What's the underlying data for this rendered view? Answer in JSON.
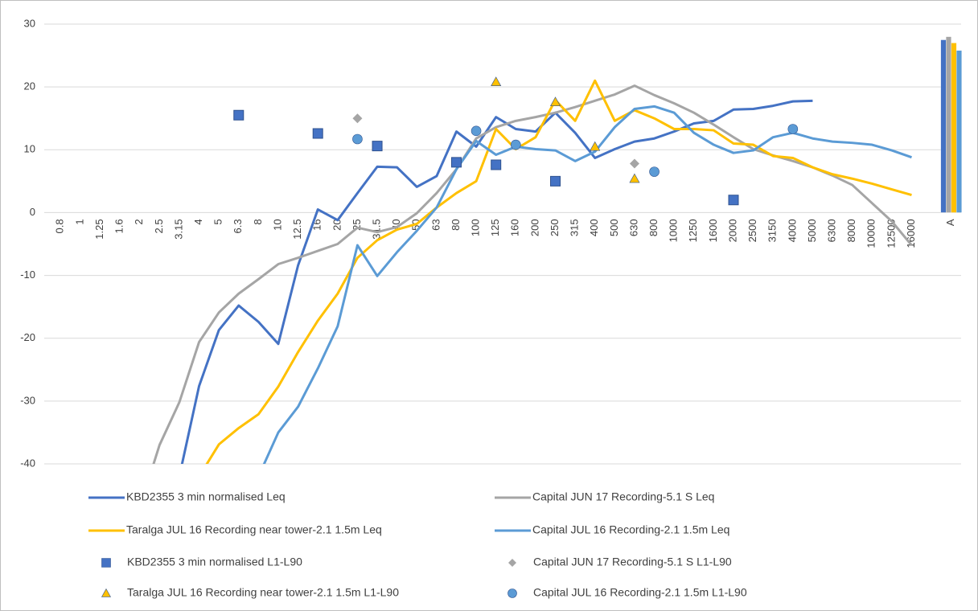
{
  "chart_data": {
    "type": "line",
    "categories": [
      "0.8",
      "1",
      "1.25",
      "1.6",
      "2",
      "2.5",
      "3.15",
      "4",
      "5",
      "6.3",
      "8",
      "10",
      "12.5",
      "16",
      "20",
      "25",
      "31.5",
      "40",
      "50",
      "63",
      "80",
      "100",
      "125",
      "160",
      "200",
      "250",
      "315",
      "400",
      "500",
      "630",
      "800",
      "1000",
      "1250",
      "1600",
      "2000",
      "2500",
      "3150",
      "4000",
      "5000",
      "6300",
      "8000",
      "10000",
      "12500",
      "16000",
      null,
      "A"
    ],
    "ylim": [
      -40,
      30
    ],
    "yticks": [
      -40,
      -30,
      -20,
      -10,
      0,
      10,
      20,
      30
    ],
    "grid": true,
    "series": [
      {
        "name": "KBD2355 3 min normalised Leq",
        "type": "line",
        "color": "#4472c4",
        "values": [
          null,
          null,
          null,
          null,
          null,
          null,
          -42,
          -27.6,
          -18.7,
          -14.8,
          -17.4,
          -20.9,
          -8.4,
          0.5,
          -1.2,
          3.1,
          7.3,
          7.2,
          4.1,
          5.8,
          12.9,
          10.5,
          15.2,
          13.3,
          12.9,
          15.9,
          12.7,
          8.7,
          10.1,
          11.3,
          11.8,
          12.9,
          14.2,
          14.6,
          16.4,
          16.5,
          17.0,
          17.7,
          17.8,
          null,
          null,
          null,
          null,
          null,
          null,
          null
        ]
      },
      {
        "name": "Capital JUN 17 Recording-5.1 S Leq",
        "type": "line",
        "color": "#a5a5a5",
        "values": [
          null,
          null,
          null,
          null,
          -47,
          -37,
          -30.2,
          -20.6,
          -15.9,
          -12.9,
          -10.6,
          -8.2,
          -7.2,
          -6.1,
          -5.0,
          -2.4,
          -3.1,
          -2.3,
          -0.1,
          3.1,
          6.9,
          11.8,
          13.6,
          14.6,
          15.2,
          15.9,
          16.8,
          17.8,
          18.8,
          20.2,
          18.7,
          17.4,
          15.9,
          14.0,
          12.0,
          10.1,
          9.1,
          8.2,
          7.2,
          5.9,
          4.4,
          1.5,
          -1.4,
          -5.2,
          null,
          null
        ]
      },
      {
        "name": "Taralga JUL 16 Recording near tower-2.1 1.5m Leq",
        "type": "line",
        "color": "#ffc000",
        "values": [
          null,
          null,
          null,
          null,
          null,
          null,
          null,
          -42,
          -36.9,
          -34.3,
          -32.1,
          -27.7,
          -22.2,
          -17.2,
          -12.9,
          -7.2,
          -4.4,
          -2.7,
          -1.8,
          0.8,
          3.1,
          5.0,
          13.3,
          10.1,
          12.0,
          17.9,
          14.6,
          21.0,
          14.6,
          16.3,
          15.0,
          13.3,
          13.3,
          13.1,
          11.0,
          10.8,
          9.0,
          8.7,
          7.2,
          6.1,
          5.4,
          4.6,
          3.7,
          2.8,
          null,
          null
        ]
      },
      {
        "name": "Capital JUL 16 Recording-2.1 1.5m Leq",
        "type": "line",
        "color": "#5b9bd5",
        "values": [
          null,
          null,
          null,
          null,
          null,
          null,
          null,
          null,
          null,
          null,
          -42,
          -35,
          -30.9,
          -24.8,
          -18.1,
          -5.2,
          -10.1,
          -6.3,
          -2.9,
          0.8,
          6.9,
          11.4,
          9.2,
          10.5,
          10.1,
          9.9,
          8.2,
          9.7,
          13.6,
          16.5,
          16.9,
          15.9,
          12.7,
          10.8,
          9.5,
          9.9,
          12.0,
          12.7,
          11.8,
          11.3,
          11.1,
          10.8,
          9.9,
          8.8,
          null,
          null
        ]
      },
      {
        "name": "KBD2355 3 min normalised L1-L90",
        "type": "scatter",
        "marker": "square",
        "color": "#4472c4",
        "values": [
          null,
          null,
          null,
          null,
          null,
          null,
          null,
          null,
          null,
          15.5,
          null,
          null,
          null,
          12.6,
          null,
          null,
          10.6,
          null,
          null,
          null,
          8.0,
          null,
          7.6,
          null,
          null,
          5.0,
          null,
          null,
          null,
          null,
          null,
          null,
          null,
          null,
          2.0,
          null,
          null,
          null,
          null,
          null,
          null,
          null,
          null,
          null,
          null,
          null
        ]
      },
      {
        "name": "Capital JUN 17 Recording-5.1 S L1-L90",
        "type": "scatter",
        "marker": "diamond",
        "color": "#a5a5a5",
        "values": [
          null,
          null,
          null,
          null,
          null,
          null,
          null,
          null,
          null,
          null,
          null,
          null,
          null,
          null,
          null,
          15.0,
          null,
          null,
          null,
          null,
          null,
          null,
          null,
          null,
          null,
          null,
          null,
          null,
          null,
          7.8,
          null,
          null,
          null,
          null,
          null,
          null,
          null,
          null,
          null,
          null,
          null,
          null,
          null,
          null,
          null,
          null
        ]
      },
      {
        "name": "Taralga JUL 16 Recording near tower-2.1 1.5m L1-L90",
        "type": "scatter",
        "marker": "triangle",
        "color": "#ffc000",
        "values": [
          null,
          null,
          null,
          null,
          null,
          null,
          null,
          null,
          null,
          null,
          null,
          null,
          null,
          null,
          null,
          null,
          null,
          null,
          null,
          null,
          null,
          null,
          20.8,
          null,
          null,
          17.6,
          null,
          10.5,
          null,
          5.4,
          null,
          null,
          null,
          null,
          null,
          null,
          null,
          null,
          null,
          null,
          null,
          null,
          null,
          null,
          null,
          null
        ]
      },
      {
        "name": "Capital JUL 16 Recording-2.1 1.5m L1-L90",
        "type": "scatter",
        "marker": "circle",
        "color": "#5b9bd5",
        "values": [
          null,
          null,
          null,
          null,
          null,
          null,
          null,
          null,
          null,
          null,
          null,
          null,
          null,
          null,
          null,
          11.7,
          null,
          null,
          null,
          null,
          null,
          13.0,
          null,
          10.8,
          null,
          null,
          null,
          null,
          null,
          null,
          6.5,
          null,
          null,
          null,
          null,
          null,
          null,
          13.3,
          null,
          null,
          null,
          null,
          null,
          null,
          null,
          null
        ]
      },
      {
        "type": "bar",
        "color": "#4472c4",
        "values": [
          null,
          null,
          null,
          null,
          null,
          null,
          null,
          null,
          null,
          null,
          null,
          null,
          null,
          null,
          null,
          null,
          null,
          null,
          null,
          null,
          null,
          null,
          null,
          null,
          null,
          null,
          null,
          null,
          null,
          null,
          null,
          null,
          null,
          null,
          null,
          null,
          null,
          null,
          null,
          null,
          null,
          null,
          null,
          null,
          null,
          27.5
        ]
      },
      {
        "type": "bar",
        "color": "#a5a5a5",
        "values": [
          null,
          null,
          null,
          null,
          null,
          null,
          null,
          null,
          null,
          null,
          null,
          null,
          null,
          null,
          null,
          null,
          null,
          null,
          null,
          null,
          null,
          null,
          null,
          null,
          null,
          null,
          null,
          null,
          null,
          null,
          null,
          null,
          null,
          null,
          null,
          null,
          null,
          null,
          null,
          null,
          null,
          null,
          null,
          null,
          null,
          28.0
        ]
      },
      {
        "type": "bar",
        "color": "#ffc000",
        "values": [
          null,
          null,
          null,
          null,
          null,
          null,
          null,
          null,
          null,
          null,
          null,
          null,
          null,
          null,
          null,
          null,
          null,
          null,
          null,
          null,
          null,
          null,
          null,
          null,
          null,
          null,
          null,
          null,
          null,
          null,
          null,
          null,
          null,
          null,
          null,
          null,
          null,
          null,
          null,
          null,
          null,
          null,
          null,
          null,
          null,
          27.0
        ]
      },
      {
        "type": "bar",
        "color": "#5b9bd5",
        "values": [
          null,
          null,
          null,
          null,
          null,
          null,
          null,
          null,
          null,
          null,
          null,
          null,
          null,
          null,
          null,
          null,
          null,
          null,
          null,
          null,
          null,
          null,
          null,
          null,
          null,
          null,
          null,
          null,
          null,
          null,
          null,
          null,
          null,
          null,
          null,
          null,
          null,
          null,
          null,
          null,
          null,
          null,
          null,
          null,
          null,
          25.8
        ]
      }
    ]
  }
}
